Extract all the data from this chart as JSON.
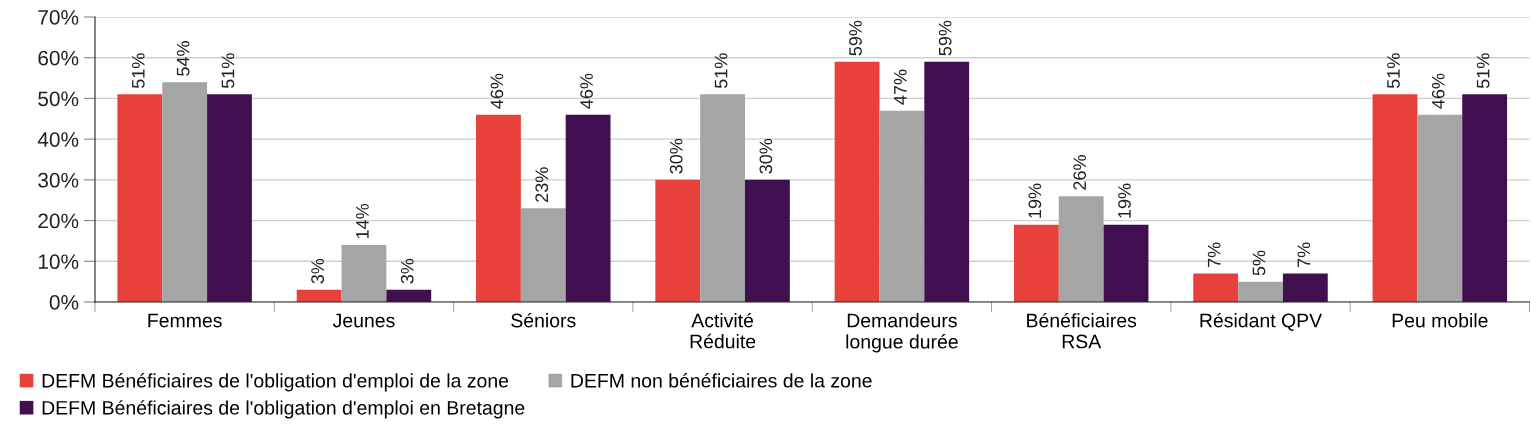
{
  "chart_data": {
    "type": "bar",
    "categories": [
      "Femmes",
      "Jeunes",
      "Séniors",
      "Activité\nRéduite",
      "Demandeurs\nlongue durée",
      "Bénéficiaires\nRSA",
      "Résidant QPV",
      "Peu mobile"
    ],
    "series": [
      {
        "name": "DEFM Bénéficiaires de l'obligation d'emploi de la zone",
        "color": "#e8413c",
        "values": [
          51,
          3,
          46,
          30,
          59,
          19,
          7,
          51
        ],
        "value_labels": [
          "51%",
          "3%",
          "46%",
          "30%",
          "59%",
          "19%",
          "7%",
          "51%"
        ]
      },
      {
        "name": "DEFM non bénéficiaires de la zone",
        "color": "#a5a5a5",
        "values": [
          54,
          14,
          23,
          51,
          47,
          26,
          5,
          46
        ],
        "value_labels": [
          "54%",
          "14%",
          "23%",
          "51%",
          "47%",
          "26%",
          "5%",
          "46%"
        ]
      },
      {
        "name": "DEFM Bénéficiaires de l'obligation d'emploi en Bretagne",
        "color": "#3f0f4f",
        "values": [
          51,
          3,
          46,
          30,
          59,
          19,
          7,
          51
        ],
        "value_labels": [
          "51%",
          "3%",
          "46%",
          "30%",
          "59%",
          "19%",
          "7%",
          "51%"
        ]
      }
    ],
    "ylim": [
      0,
      70
    ],
    "yticks": [
      {
        "value": 0,
        "label": "0%"
      },
      {
        "value": 10,
        "label": "10%"
      },
      {
        "value": 20,
        "label": "20%"
      },
      {
        "value": 30,
        "label": "30%"
      },
      {
        "value": 40,
        "label": "40%"
      },
      {
        "value": 50,
        "label": "50%"
      },
      {
        "value": 60,
        "label": "60%"
      },
      {
        "value": 70,
        "label": "70%"
      }
    ],
    "grid": "y",
    "legend": "bottom"
  }
}
